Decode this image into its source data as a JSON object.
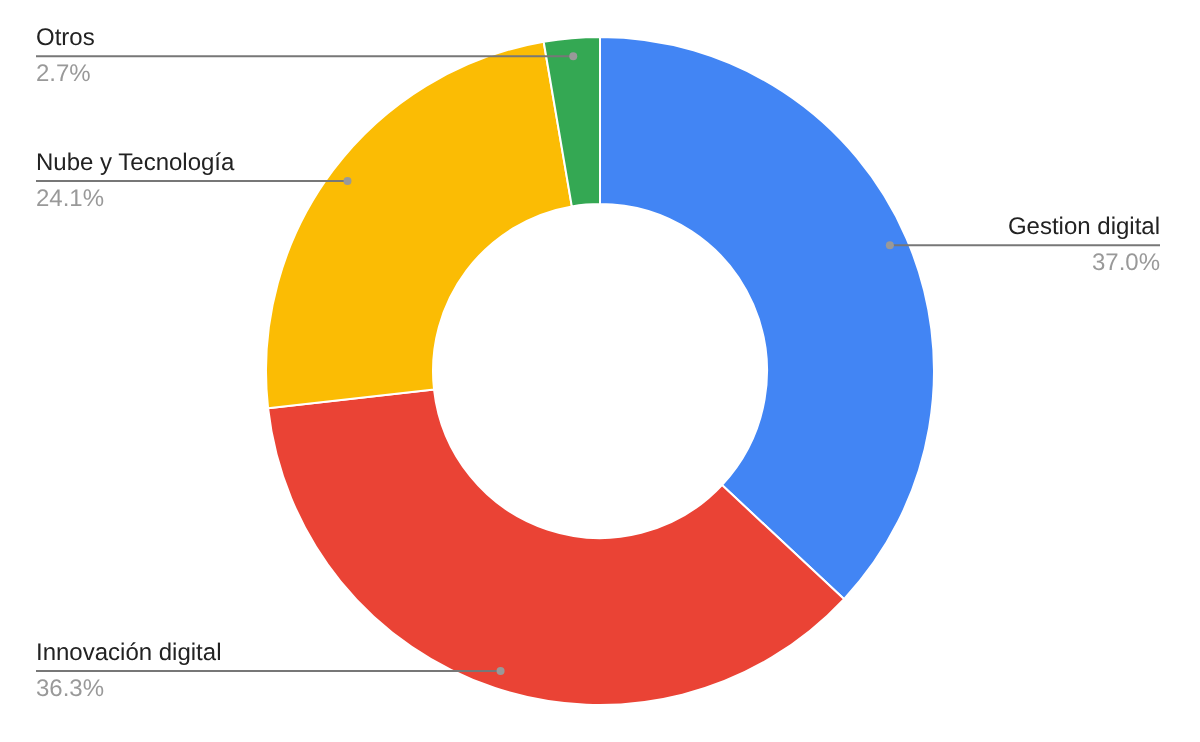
{
  "chart_data": {
    "type": "donut",
    "categories": [
      "Gestion digital",
      "Innovación digital",
      "Nube y Tecnología",
      "Otros"
    ],
    "values": [
      37.0,
      36.3,
      24.1,
      2.7
    ],
    "colors": [
      "#4285f4",
      "#ea4335",
      "#fbbc04",
      "#34a853"
    ],
    "value_labels": [
      "37.0%",
      "36.3%",
      "24.1%",
      "2.7%"
    ],
    "legend": false
  }
}
